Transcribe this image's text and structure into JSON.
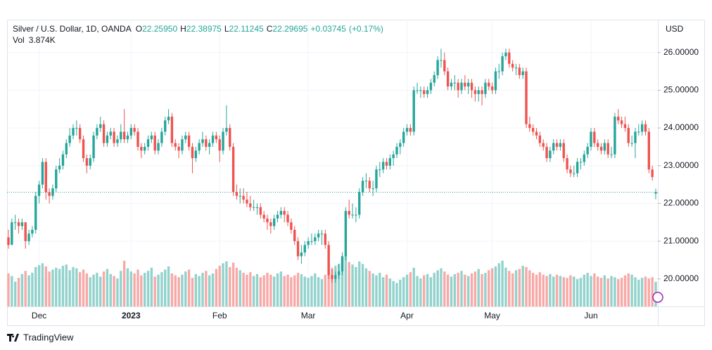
{
  "chart_data": {
    "type": "candlestick",
    "title": "Silver / U.S. Dollar, 1D, OANDA",
    "legend_keys": [
      "O",
      "H",
      "L",
      "C"
    ],
    "legend_labels": [
      "22.25950",
      "22.38975",
      "22.11245",
      "22.29695"
    ],
    "change": {
      "value": 0.03745,
      "label": "+0.03745"
    },
    "change_pct": {
      "value": 0.17,
      "label": "(+0.17%)"
    },
    "volume_key": "Vol",
    "volume_label": "3.874K",
    "currency": "USD",
    "up_color": "#26a69a",
    "down_color": "#ef5350",
    "volume_up_color": "#92d2cc",
    "volume_down_color": "#f7a9a7",
    "grid": true,
    "ylim": [
      19.27,
      26.87
    ],
    "yticks": [
      {
        "value": 20,
        "label": "20.00000"
      },
      {
        "value": 21,
        "label": "21.00000"
      },
      {
        "value": 22,
        "label": "22.00000"
      },
      {
        "value": 23,
        "label": "23.00000"
      },
      {
        "value": 24,
        "label": "24.00000"
      },
      {
        "value": 25,
        "label": "25.00000"
      },
      {
        "value": 26,
        "label": "26.00000"
      }
    ],
    "categories": [
      null,
      null,
      null,
      null,
      null,
      null,
      null,
      null,
      null,
      "Dec",
      null,
      null,
      null,
      null,
      null,
      null,
      null,
      null,
      null,
      null,
      null,
      null,
      null,
      null,
      null,
      null,
      null,
      null,
      null,
      null,
      null,
      null,
      null,
      null,
      null,
      null,
      "2023",
      null,
      null,
      null,
      null,
      null,
      null,
      null,
      null,
      null,
      null,
      null,
      null,
      null,
      null,
      null,
      null,
      null,
      null,
      null,
      null,
      null,
      null,
      null,
      null,
      null,
      "Feb",
      null,
      null,
      null,
      null,
      null,
      null,
      null,
      null,
      null,
      null,
      null,
      null,
      null,
      null,
      null,
      null,
      null,
      null,
      null,
      null,
      null,
      null,
      null,
      null,
      null,
      "Mar",
      null,
      null,
      null,
      null,
      null,
      null,
      null,
      null,
      null,
      null,
      null,
      null,
      null,
      null,
      null,
      null,
      null,
      null,
      null,
      null,
      null,
      null,
      null,
      null,
      null,
      null,
      null,
      null,
      "Apr",
      null,
      null,
      null,
      null,
      null,
      null,
      null,
      null,
      null,
      null,
      null,
      null,
      null,
      null,
      null,
      null,
      null,
      null,
      null,
      null,
      null,
      null,
      null,
      null,
      "May",
      null,
      null,
      null,
      null,
      null,
      null,
      null,
      null,
      null,
      null,
      null,
      null,
      null,
      null,
      null,
      null,
      null,
      null,
      null,
      null,
      null,
      null,
      null,
      null,
      null,
      null,
      null,
      null,
      "Jun",
      null,
      null,
      null,
      null,
      null,
      null,
      null,
      null,
      null,
      null,
      null,
      null,
      null,
      null,
      null,
      null,
      null,
      null,
      null
    ],
    "ohlc": [
      [
        21.1,
        21.3,
        20.8,
        20.9
      ],
      [
        20.9,
        21.6,
        20.9,
        21.5
      ],
      [
        21.5,
        21.7,
        21.3,
        21.5
      ],
      [
        21.5,
        21.6,
        21.2,
        21.4
      ],
      [
        21.4,
        21.6,
        21.3,
        21.5
      ],
      [
        21.5,
        21.5,
        20.8,
        21.0
      ],
      [
        21.0,
        21.3,
        20.9,
        21.2
      ],
      [
        21.2,
        21.4,
        21.1,
        21.3
      ],
      [
        21.3,
        22.3,
        21.2,
        22.2
      ],
      [
        22.2,
        22.6,
        22.0,
        22.5
      ],
      [
        22.5,
        23.2,
        22.4,
        23.1
      ],
      [
        23.1,
        23.2,
        22.1,
        22.3
      ],
      [
        22.3,
        22.4,
        22.0,
        22.2
      ],
      [
        22.2,
        22.5,
        22.1,
        22.4
      ],
      [
        22.4,
        23.0,
        22.3,
        22.9
      ],
      [
        22.9,
        23.2,
        22.8,
        23.0
      ],
      [
        23.0,
        23.4,
        22.9,
        23.3
      ],
      [
        23.3,
        23.7,
        23.2,
        23.6
      ],
      [
        23.6,
        24.0,
        23.5,
        23.8
      ],
      [
        23.8,
        24.1,
        23.7,
        24.0
      ],
      [
        24.0,
        24.2,
        23.8,
        24.0
      ],
      [
        24.0,
        24.1,
        23.6,
        23.7
      ],
      [
        23.7,
        23.8,
        23.1,
        23.2
      ],
      [
        23.2,
        23.3,
        22.8,
        23.0
      ],
      [
        23.0,
        23.3,
        22.9,
        23.2
      ],
      [
        23.2,
        23.9,
        23.1,
        23.8
      ],
      [
        23.8,
        24.1,
        23.7,
        24.0
      ],
      [
        24.0,
        24.3,
        23.9,
        24.1
      ],
      [
        24.1,
        24.2,
        23.5,
        23.6
      ],
      [
        23.6,
        23.9,
        23.5,
        23.8
      ],
      [
        23.8,
        24.0,
        23.7,
        23.9
      ],
      [
        23.9,
        24.0,
        23.5,
        23.6
      ],
      [
        23.6,
        23.8,
        23.5,
        23.7
      ],
      [
        23.7,
        24.1,
        23.6,
        23.9
      ],
      [
        23.9,
        24.5,
        23.6,
        23.7
      ],
      [
        23.7,
        23.9,
        23.6,
        23.8
      ],
      [
        23.8,
        24.1,
        23.7,
        24.0
      ],
      [
        24.0,
        24.1,
        23.8,
        23.9
      ],
      [
        23.9,
        24.0,
        23.4,
        23.5
      ],
      [
        23.5,
        23.6,
        23.2,
        23.4
      ],
      [
        23.4,
        23.6,
        23.3,
        23.5
      ],
      [
        23.5,
        23.8,
        23.4,
        23.7
      ],
      [
        23.7,
        23.9,
        23.6,
        23.8
      ],
      [
        23.8,
        23.9,
        23.3,
        23.4
      ],
      [
        23.4,
        23.7,
        23.3,
        23.6
      ],
      [
        23.6,
        24.0,
        23.5,
        23.9
      ],
      [
        23.9,
        24.3,
        23.8,
        24.2
      ],
      [
        24.2,
        24.5,
        24.1,
        24.3
      ],
      [
        24.3,
        24.4,
        23.5,
        23.6
      ],
      [
        23.6,
        23.7,
        23.4,
        23.5
      ],
      [
        23.5,
        23.6,
        23.2,
        23.4
      ],
      [
        23.4,
        23.8,
        23.3,
        23.7
      ],
      [
        23.7,
        23.9,
        23.6,
        23.8
      ],
      [
        23.8,
        23.9,
        23.4,
        23.5
      ],
      [
        23.5,
        23.6,
        22.8,
        23.2
      ],
      [
        23.2,
        23.5,
        23.1,
        23.4
      ],
      [
        23.4,
        23.7,
        23.3,
        23.6
      ],
      [
        23.6,
        23.9,
        23.5,
        23.7
      ],
      [
        23.7,
        23.8,
        23.4,
        23.5
      ],
      [
        23.5,
        23.7,
        23.3,
        23.6
      ],
      [
        23.6,
        23.9,
        23.5,
        23.8
      ],
      [
        23.8,
        23.9,
        23.6,
        23.7
      ],
      [
        23.7,
        23.8,
        23.1,
        23.4
      ],
      [
        23.4,
        24.0,
        23.3,
        23.9
      ],
      [
        23.9,
        24.6,
        23.8,
        24.0
      ],
      [
        24.0,
        24.1,
        23.4,
        23.5
      ],
      [
        23.5,
        23.6,
        22.2,
        22.3
      ],
      [
        22.3,
        22.5,
        22.1,
        22.2
      ],
      [
        22.2,
        22.4,
        22.0,
        22.2
      ],
      [
        22.2,
        22.4,
        22.0,
        22.1
      ],
      [
        22.1,
        22.3,
        21.9,
        22.0
      ],
      [
        22.0,
        22.2,
        21.8,
        21.9
      ],
      [
        21.9,
        22.1,
        21.8,
        21.9
      ],
      [
        21.9,
        22.0,
        21.7,
        21.9
      ],
      [
        21.9,
        22.0,
        21.6,
        21.7
      ],
      [
        21.7,
        21.8,
        21.5,
        21.6
      ],
      [
        21.6,
        21.7,
        21.3,
        21.5
      ],
      [
        21.5,
        21.6,
        21.2,
        21.4
      ],
      [
        21.4,
        21.7,
        21.3,
        21.6
      ],
      [
        21.6,
        21.8,
        21.5,
        21.7
      ],
      [
        21.7,
        21.9,
        21.6,
        21.8
      ],
      [
        21.8,
        21.9,
        21.5,
        21.7
      ],
      [
        21.7,
        21.8,
        21.4,
        21.5
      ],
      [
        21.5,
        21.6,
        21.2,
        21.3
      ],
      [
        21.3,
        21.4,
        20.9,
        21.0
      ],
      [
        21.0,
        21.1,
        20.5,
        20.6
      ],
      [
        20.6,
        20.9,
        20.4,
        20.7
      ],
      [
        20.7,
        21.0,
        20.6,
        20.9
      ],
      [
        20.9,
        21.1,
        20.8,
        21.0
      ],
      [
        21.0,
        21.2,
        20.9,
        21.0
      ],
      [
        21.0,
        21.2,
        20.9,
        21.1
      ],
      [
        21.1,
        21.3,
        21.0,
        21.2
      ],
      [
        21.2,
        21.3,
        20.9,
        21.2
      ],
      [
        21.2,
        21.3,
        20.8,
        20.9
      ],
      [
        20.9,
        21.0,
        20.0,
        20.1
      ],
      [
        20.1,
        20.3,
        19.9,
        20.0
      ],
      [
        20.0,
        20.2,
        19.9,
        20.1
      ],
      [
        20.1,
        20.4,
        20.0,
        20.2
      ],
      [
        20.2,
        20.7,
        20.1,
        20.6
      ],
      [
        20.6,
        21.9,
        20.5,
        21.8
      ],
      [
        21.8,
        22.1,
        21.6,
        21.7
      ],
      [
        21.7,
        22.0,
        21.6,
        21.7
      ],
      [
        21.7,
        21.9,
        21.5,
        21.7
      ],
      [
        21.7,
        22.4,
        21.6,
        22.3
      ],
      [
        22.3,
        22.7,
        22.2,
        22.6
      ],
      [
        22.6,
        22.8,
        22.4,
        22.6
      ],
      [
        22.6,
        22.7,
        22.3,
        22.4
      ],
      [
        22.4,
        22.6,
        22.2,
        22.4
      ],
      [
        22.4,
        23.0,
        22.3,
        22.9
      ],
      [
        22.9,
        23.1,
        22.7,
        22.9
      ],
      [
        22.9,
        23.2,
        22.8,
        23.1
      ],
      [
        23.1,
        23.2,
        22.9,
        23.0
      ],
      [
        23.0,
        23.3,
        22.9,
        23.2
      ],
      [
        23.2,
        23.4,
        23.0,
        23.3
      ],
      [
        23.3,
        23.6,
        23.2,
        23.5
      ],
      [
        23.5,
        23.7,
        23.3,
        23.6
      ],
      [
        23.6,
        24.0,
        23.5,
        23.9
      ],
      [
        23.9,
        24.1,
        23.8,
        24.0
      ],
      [
        24.0,
        24.1,
        23.8,
        23.9
      ],
      [
        23.9,
        25.1,
        23.8,
        25.0
      ],
      [
        25.0,
        25.2,
        24.9,
        25.0
      ],
      [
        25.0,
        25.1,
        24.8,
        25.0
      ],
      [
        25.0,
        25.1,
        24.8,
        24.9
      ],
      [
        24.9,
        25.1,
        24.8,
        25.0
      ],
      [
        25.0,
        25.3,
        24.9,
        25.2
      ],
      [
        25.2,
        25.5,
        25.1,
        25.4
      ],
      [
        25.4,
        25.9,
        25.3,
        25.8
      ],
      [
        25.8,
        26.1,
        25.6,
        25.8
      ],
      [
        25.8,
        26.0,
        25.4,
        25.5
      ],
      [
        25.5,
        25.6,
        25.0,
        25.1
      ],
      [
        25.1,
        25.3,
        25.0,
        25.2
      ],
      [
        25.2,
        25.4,
        25.0,
        25.2
      ],
      [
        25.2,
        25.3,
        24.8,
        25.0
      ],
      [
        25.0,
        25.3,
        24.9,
        25.2
      ],
      [
        25.2,
        25.4,
        25.0,
        25.1
      ],
      [
        25.1,
        25.3,
        24.9,
        25.2
      ],
      [
        25.2,
        25.3,
        24.8,
        25.0
      ],
      [
        25.0,
        25.1,
        24.7,
        24.9
      ],
      [
        24.9,
        25.1,
        24.7,
        25.0
      ],
      [
        25.0,
        25.1,
        24.6,
        24.9
      ],
      [
        24.9,
        25.3,
        24.8,
        25.2
      ],
      [
        25.2,
        25.3,
        25.0,
        25.1
      ],
      [
        25.1,
        25.2,
        24.9,
        25.0
      ],
      [
        25.0,
        25.6,
        24.9,
        25.5
      ],
      [
        25.5,
        25.7,
        25.3,
        25.5
      ],
      [
        25.5,
        26.0,
        25.4,
        25.9
      ],
      [
        25.9,
        26.1,
        25.8,
        26.0
      ],
      [
        26.0,
        26.1,
        25.6,
        25.7
      ],
      [
        25.7,
        25.8,
        25.5,
        25.6
      ],
      [
        25.6,
        25.7,
        25.4,
        25.6
      ],
      [
        25.6,
        25.7,
        25.3,
        25.4
      ],
      [
        25.4,
        25.6,
        25.3,
        25.5
      ],
      [
        25.5,
        25.6,
        24.0,
        24.1
      ],
      [
        24.1,
        24.3,
        23.9,
        24.0
      ],
      [
        24.0,
        24.1,
        23.8,
        23.9
      ],
      [
        23.9,
        24.0,
        23.7,
        23.8
      ],
      [
        23.8,
        23.9,
        23.5,
        23.6
      ],
      [
        23.6,
        23.7,
        23.4,
        23.5
      ],
      [
        23.5,
        23.6,
        23.1,
        23.2
      ],
      [
        23.2,
        23.5,
        23.1,
        23.4
      ],
      [
        23.4,
        23.7,
        23.3,
        23.6
      ],
      [
        23.6,
        23.7,
        23.4,
        23.5
      ],
      [
        23.5,
        23.7,
        23.4,
        23.6
      ],
      [
        23.6,
        23.7,
        23.1,
        23.2
      ],
      [
        23.2,
        23.3,
        22.8,
        22.9
      ],
      [
        22.9,
        23.0,
        22.7,
        22.8
      ],
      [
        22.8,
        23.0,
        22.7,
        22.8
      ],
      [
        22.8,
        23.2,
        22.7,
        23.1
      ],
      [
        23.1,
        23.2,
        22.9,
        23.1
      ],
      [
        23.1,
        23.4,
        23.0,
        23.3
      ],
      [
        23.3,
        23.6,
        23.2,
        23.5
      ],
      [
        23.5,
        24.0,
        23.4,
        23.9
      ],
      [
        23.9,
        24.0,
        23.5,
        23.6
      ],
      [
        23.6,
        23.7,
        23.4,
        23.5
      ],
      [
        23.5,
        23.6,
        23.3,
        23.4
      ],
      [
        23.4,
        23.7,
        23.3,
        23.6
      ],
      [
        23.6,
        23.7,
        23.2,
        23.3
      ],
      [
        23.3,
        23.5,
        23.2,
        23.3
      ],
      [
        23.3,
        24.4,
        23.2,
        24.3
      ],
      [
        24.3,
        24.5,
        24.1,
        24.2
      ],
      [
        24.2,
        24.3,
        24.0,
        24.1
      ],
      [
        24.1,
        24.3,
        23.9,
        24.0
      ],
      [
        24.0,
        24.1,
        23.5,
        23.6
      ],
      [
        23.6,
        23.8,
        23.5,
        23.6
      ],
      [
        23.6,
        24.0,
        23.2,
        23.9
      ],
      [
        23.9,
        24.1,
        23.8,
        23.9
      ],
      [
        23.9,
        24.2,
        23.8,
        24.1
      ],
      [
        24.1,
        24.2,
        23.8,
        23.9
      ],
      [
        23.9,
        24.0,
        22.8,
        22.9
      ],
      [
        22.9,
        23.0,
        22.6,
        22.7
      ],
      [
        22.2595,
        22.38975,
        22.11245,
        22.29695
      ]
    ],
    "volumes": [
      5200,
      4800,
      3900,
      4500,
      5100,
      5600,
      4900,
      5300,
      6200,
      6500,
      6800,
      6300,
      5500,
      5800,
      6100,
      5900,
      6400,
      6600,
      5700,
      6200,
      6000,
      5400,
      5800,
      5200,
      4600,
      5000,
      5300,
      4700,
      5500,
      5900,
      5100,
      4800,
      4400,
      5600,
      7200,
      6000,
      5500,
      5200,
      5800,
      4900,
      5300,
      5600,
      6100,
      4700,
      5000,
      5400,
      5800,
      6300,
      5200,
      4900,
      4600,
      5000,
      5500,
      5800,
      4500,
      5100,
      4800,
      5300,
      5600,
      4900,
      5200,
      5900,
      6400,
      6800,
      7100,
      6200,
      6900,
      6100,
      5700,
      5300,
      5000,
      5400,
      4800,
      5100,
      4600,
      4900,
      5300,
      5000,
      4700,
      5200,
      5500,
      4800,
      5000,
      4600,
      4900,
      5300,
      5100,
      4700,
      4500,
      4800,
      5200,
      4600,
      4300,
      5000,
      6800,
      5900,
      6400,
      6700,
      7400,
      8300,
      7000,
      6600,
      6200,
      7100,
      6700,
      6000,
      5600,
      5200,
      4900,
      5300,
      4600,
      5000,
      4400,
      4000,
      3700,
      4200,
      4600,
      5000,
      5400,
      6100,
      4800,
      4400,
      4900,
      5100,
      4600,
      5300,
      5700,
      6000,
      5500,
      5000,
      4700,
      5100,
      5300,
      5600,
      5000,
      4800,
      5200,
      5500,
      5900,
      5100,
      5300,
      5700,
      6000,
      6300,
      6800,
      7200,
      6100,
      5600,
      5200,
      5700,
      5900,
      6400,
      6200,
      5700,
      5300,
      5000,
      5400,
      5000,
      4800,
      5100,
      4700,
      5000,
      4800,
      4600,
      4500,
      4900,
      4700,
      4300,
      4500,
      5000,
      5300,
      4800,
      5200,
      4700,
      4500,
      4900,
      4400,
      4800,
      4600,
      4300,
      4500,
      4900,
      5200,
      5000,
      4600,
      4200,
      4500,
      4700,
      4400,
      4600,
      3874
    ]
  },
  "footer_brand": "TradingView"
}
